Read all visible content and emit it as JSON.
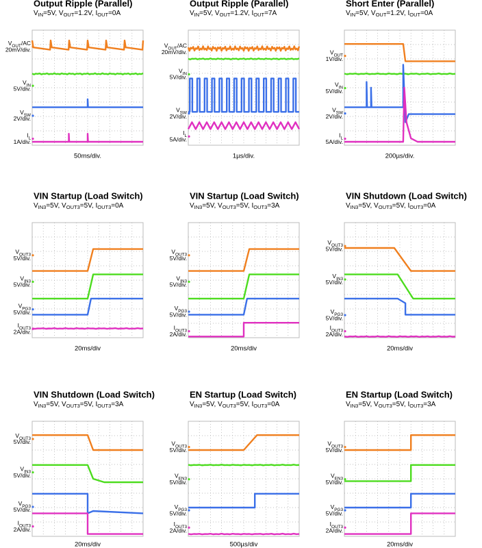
{
  "panels": [
    {
      "title": "Output Ripple (Parallel)",
      "subtitle": [
        "V",
        "IN",
        "=5V, V",
        "OUT",
        "=1.2V, I",
        "OUT",
        "=0A"
      ],
      "channels": [
        {
          "name": [
            "V",
            "OUT",
            "/AC"
          ],
          "scale": "20mV/div."
        },
        {
          "name": [
            "V",
            "IN"
          ],
          "scale": "5V/div."
        },
        {
          "name": [
            "V",
            "SW"
          ],
          "scale": "2V/div."
        },
        {
          "name": [
            "I",
            "L"
          ],
          "scale": "1A/div."
        }
      ],
      "time": "50ms/div."
    },
    {
      "title": "Output Ripple (Parallel)",
      "subtitle": [
        "V",
        "IN",
        "=5V, V",
        "OUT",
        "=1.2V, I",
        "OUT",
        "=7A"
      ],
      "channels": [
        {
          "name": [
            "V",
            "OUT",
            "/AC"
          ],
          "scale": "20mV/div."
        },
        {
          "name": [
            "V",
            "IN"
          ],
          "scale": "5V/div."
        },
        {
          "name": [
            "V",
            "SW"
          ],
          "scale": "2V/div."
        },
        {
          "name": [
            "I",
            "L"
          ],
          "scale": "5A/div."
        }
      ],
      "time": "1µs/div."
    },
    {
      "title": "Short Enter (Parallel)",
      "subtitle": [
        "V",
        "IN",
        "=5V, V",
        "OUT",
        "=1.2V, I",
        "OUT",
        "=0A"
      ],
      "channels": [
        {
          "name": [
            "V",
            "OUT"
          ],
          "scale": "1V/div."
        },
        {
          "name": [
            "V",
            "IN"
          ],
          "scale": "5V/div."
        },
        {
          "name": [
            "V",
            "SW"
          ],
          "scale": "2V/div."
        },
        {
          "name": [
            "I",
            "L"
          ],
          "scale": "5A/div."
        }
      ],
      "time": "200µs/div."
    },
    {
      "title": "VIN Startup (Load Switch)",
      "subtitle": [
        "V",
        "IN3",
        "=5V, V",
        "OUT3",
        "=5V, I",
        "OUT3",
        "=0A"
      ],
      "channels": [
        {
          "name": [
            "V",
            "OUT3"
          ],
          "scale": "5V/div."
        },
        {
          "name": [
            "V",
            "IN3"
          ],
          "scale": "5V/div."
        },
        {
          "name": [
            "V",
            "PG3"
          ],
          "scale": "5V/div."
        },
        {
          "name": [
            "I",
            "OUT3"
          ],
          "scale": "2A/div."
        }
      ],
      "time": "20ms/div"
    },
    {
      "title": "VIN Startup (Load Switch)",
      "subtitle": [
        "V",
        "IN3",
        "=5V, V",
        "OUT3",
        "=5V, I",
        "OUT3",
        "=3A"
      ],
      "channels": [
        {
          "name": [
            "V",
            "OUT3"
          ],
          "scale": "5V/div."
        },
        {
          "name": [
            "V",
            "IN3"
          ],
          "scale": "5V/div."
        },
        {
          "name": [
            "V",
            "PG3"
          ],
          "scale": "5V/div."
        },
        {
          "name": [
            "I",
            "OUT3"
          ],
          "scale": "2A/div."
        }
      ],
      "time": "20ms/div"
    },
    {
      "title": "VIN Shutdown (Load Switch)",
      "subtitle": [
        "V",
        "IN3",
        "=5V, V",
        "OUT3",
        "=5V, I",
        "OUT3",
        "=0A"
      ],
      "channels": [
        {
          "name": [
            "V",
            "OUT3"
          ],
          "scale": "5V/div."
        },
        {
          "name": [
            "V",
            "IN3"
          ],
          "scale": "5V/div."
        },
        {
          "name": [
            "V",
            "PG3"
          ],
          "scale": "5V/div."
        },
        {
          "name": [
            "I",
            "OUT3"
          ],
          "scale": "2A/div."
        }
      ],
      "time": "20ms/div"
    },
    {
      "title": "VIN Shutdown (Load Switch)",
      "subtitle": [
        "V",
        "IN3",
        "=5V, V",
        "OUT3",
        "=5V, I",
        "OUT3",
        "=3A"
      ],
      "channels": [
        {
          "name": [
            "V",
            "OUT3"
          ],
          "scale": "5V/div."
        },
        {
          "name": [
            "V",
            "IN3"
          ],
          "scale": "5V/div."
        },
        {
          "name": [
            "V",
            "PG3"
          ],
          "scale": "5V/div."
        },
        {
          "name": [
            "I",
            "OUT3"
          ],
          "scale": "2A/div."
        }
      ],
      "time": "20ms/div"
    },
    {
      "title": "EN Startup (Load Switch)",
      "subtitle": [
        "V",
        "IN3",
        "=5V, V",
        "OUT3",
        "=5V, I",
        "OUT3",
        "=0A"
      ],
      "channels": [
        {
          "name": [
            "V",
            "OUT3"
          ],
          "scale": "5V/div."
        },
        {
          "name": [
            "V",
            "EN3"
          ],
          "scale": "5V/div."
        },
        {
          "name": [
            "V",
            "PG3"
          ],
          "scale": "5V/div."
        },
        {
          "name": [
            "I",
            "OUT3"
          ],
          "scale": "2A/div."
        }
      ],
      "time": "500µs/div"
    },
    {
      "title": "EN Startup (Load Switch)",
      "subtitle": [
        "V",
        "IN3",
        "=5V, V",
        "OUT3",
        "=5V, I",
        "OUT3",
        "=3A"
      ],
      "channels": [
        {
          "name": [
            "V",
            "OUT3"
          ],
          "scale": "5V/div."
        },
        {
          "name": [
            "V",
            "EN3"
          ],
          "scale": "5V/div."
        },
        {
          "name": [
            "V",
            "PG3"
          ],
          "scale": "5V/div."
        },
        {
          "name": [
            "I",
            "OUT3"
          ],
          "scale": "2A/div."
        }
      ],
      "time": "20ms/div"
    }
  ]
}
